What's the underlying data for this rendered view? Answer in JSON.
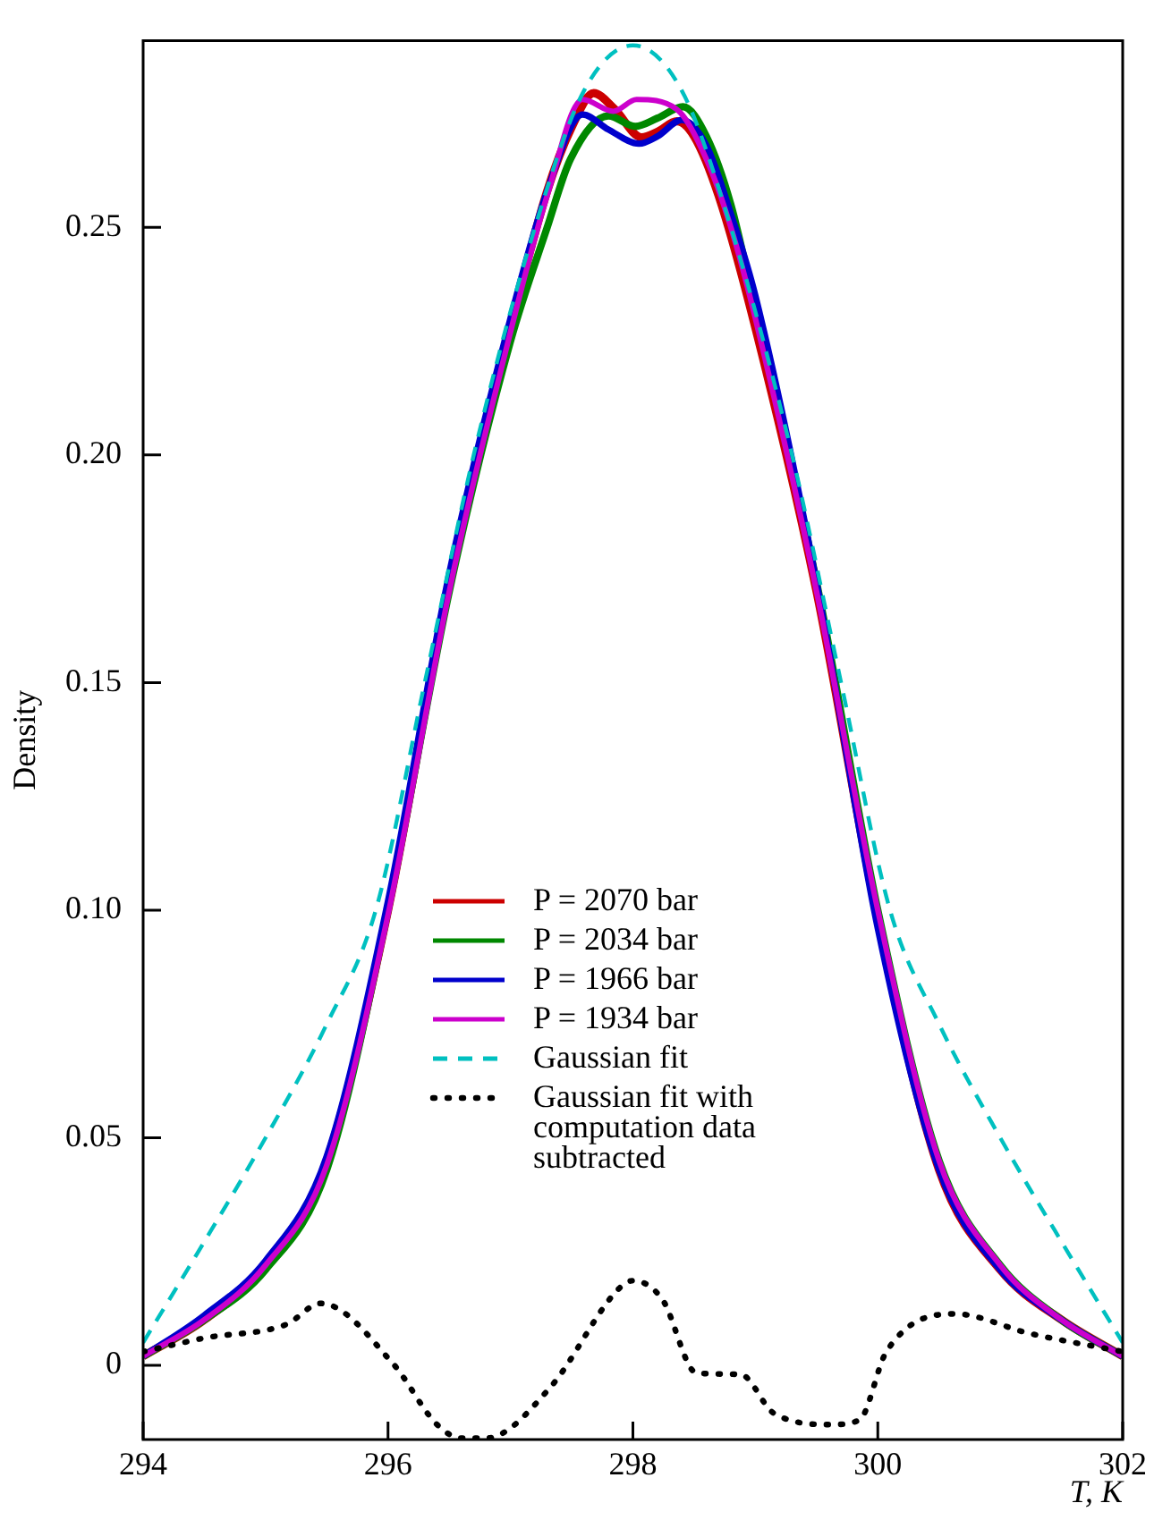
{
  "chart_data": {
    "type": "line",
    "xlabel": "T, K",
    "ylabel": "Density",
    "xlim": [
      294,
      302
    ],
    "xticks": [
      294,
      296,
      298,
      300,
      302
    ],
    "ylim": [
      -0.0163,
      0.291
    ],
    "yticks": [
      0,
      0.05,
      {
        "value": 0.1,
        "label": "0.10"
      },
      0.15,
      {
        "value": 0.2,
        "label": "0.20"
      },
      0.25
    ],
    "grid": false,
    "legend": "center",
    "marker": "none",
    "series": [
      {
        "name": "P = 2070 bar",
        "color": "#cc0000",
        "line_style": "solid",
        "x": [
          294,
          294.5,
          295,
          295.5,
          296,
          296.5,
          297,
          297.3,
          297.5,
          297.68,
          297.85,
          298.07,
          298.2,
          298.36,
          298.5,
          298.7,
          299,
          299.5,
          300,
          300.5,
          301,
          301.5,
          302
        ],
        "values": [
          0.002,
          0.01,
          0.022,
          0.045,
          0.1,
          0.172,
          0.228,
          0.258,
          0.272,
          0.2795,
          0.276,
          0.2698,
          0.271,
          0.2733,
          0.27,
          0.257,
          0.228,
          0.17,
          0.098,
          0.043,
          0.021,
          0.01,
          0.002
        ]
      },
      {
        "name": "P = 2034 bar",
        "color": "#008800",
        "line_style": "solid",
        "x": [
          294,
          294.5,
          295,
          295.5,
          296,
          296.5,
          297,
          297.3,
          297.49,
          297.8,
          298.02,
          298.2,
          298.41,
          298.6,
          298.8,
          299,
          299.5,
          300,
          300.5,
          301,
          301.5,
          302
        ],
        "values": [
          0.002,
          0.01,
          0.021,
          0.043,
          0.1,
          0.17,
          0.225,
          0.25,
          0.265,
          0.2745,
          0.2722,
          0.274,
          0.2765,
          0.27,
          0.255,
          0.232,
          0.172,
          0.1,
          0.045,
          0.022,
          0.01,
          0.002
        ]
      },
      {
        "name": "P = 1966 bar",
        "color": "#0000cc",
        "line_style": "solid",
        "x": [
          294,
          294.5,
          295,
          295.5,
          296,
          296.5,
          297,
          297.3,
          297.59,
          297.8,
          298.05,
          298.2,
          298.4,
          298.6,
          298.8,
          299,
          299.5,
          300,
          300.5,
          301,
          301.5,
          302
        ],
        "values": [
          0.002,
          0.011,
          0.023,
          0.046,
          0.102,
          0.174,
          0.23,
          0.258,
          0.2748,
          0.2715,
          0.2684,
          0.27,
          0.2736,
          0.268,
          0.253,
          0.235,
          0.172,
          0.096,
          0.043,
          0.021,
          0.01,
          0.002
        ]
      },
      {
        "name": "P = 1934 bar",
        "color": "#cc00cc",
        "line_style": "solid",
        "x": [
          294,
          294.5,
          295,
          295.5,
          296,
          296.5,
          297,
          297.3,
          297.59,
          297.84,
          298.03,
          298.35,
          298.6,
          298.8,
          299,
          299.5,
          300,
          300.5,
          301,
          301.5,
          302
        ],
        "values": [
          0.002,
          0.01,
          0.022,
          0.044,
          0.099,
          0.17,
          0.227,
          0.257,
          0.2781,
          0.2755,
          0.2781,
          0.2761,
          0.265,
          0.25,
          0.23,
          0.17,
          0.1,
          0.045,
          0.022,
          0.01,
          0.002
        ]
      },
      {
        "name": "Gaussian fit",
        "color": "#00c0c0",
        "line_style": "dashed",
        "x": [
          294,
          294.44,
          295,
          295.5,
          295.9,
          296.3,
          296.7,
          297.2,
          297.6,
          298,
          298.4,
          298.8,
          299.3,
          299.7,
          300.1,
          300.5,
          301,
          301.56,
          302
        ],
        "values": [
          0.005,
          0.0245,
          0.05,
          0.075,
          0.1,
          0.15,
          0.2,
          0.25,
          0.28,
          0.29,
          0.28,
          0.25,
          0.2,
          0.15,
          0.1,
          0.075,
          0.05,
          0.0245,
          0.005
        ]
      },
      {
        "name": "Gaussian fit with computation data subtracted",
        "color": "#000000",
        "line_style": "dotted",
        "x": [
          294,
          294.5,
          295.17,
          295.45,
          296.04,
          296.4,
          296.6,
          296.8,
          297.32,
          297.88,
          298,
          298.24,
          298.52,
          298.88,
          299.15,
          299.62,
          299.85,
          300.07,
          300.63,
          301.24,
          302
        ],
        "values": [
          0.003,
          0.006,
          0.009,
          0.0136,
          0.0004,
          -0.013,
          -0.016,
          -0.016,
          -0.005,
          0.0167,
          0.0186,
          0.0145,
          -0.0017,
          -0.002,
          -0.0105,
          -0.013,
          -0.012,
          0.003,
          0.0113,
          0.007,
          0.003
        ]
      }
    ]
  }
}
